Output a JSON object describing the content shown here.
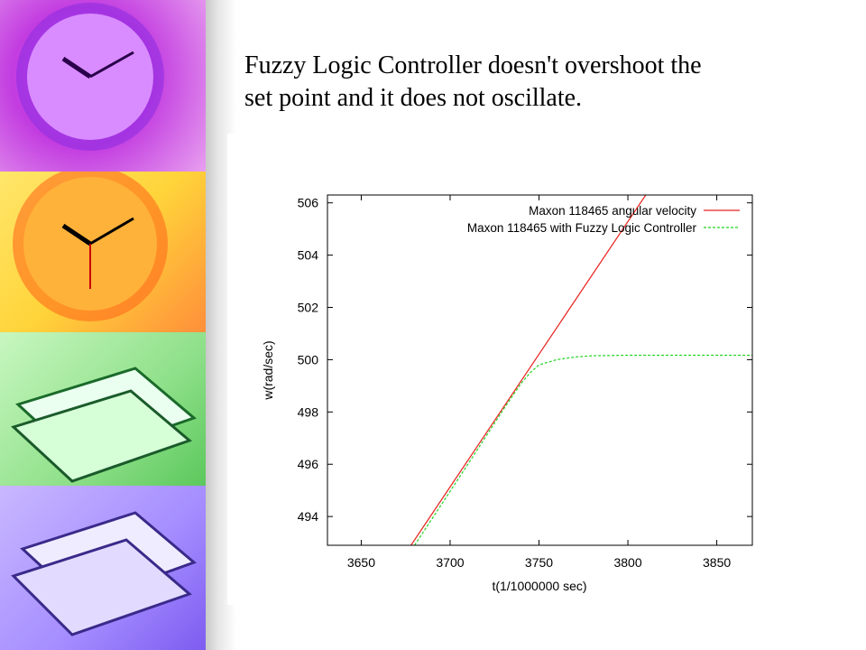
{
  "slide": {
    "title_line_1": "Fuzzy Logic Controller doesn't overshoot the",
    "title_line_2": "set point and it does not oscillate."
  },
  "colors": {
    "series_angular": "#e8231e",
    "series_fuzzy": "#22d422"
  },
  "chart_data": {
    "type": "line",
    "title": "",
    "xlabel": "t(1/1000000 sec)",
    "ylabel": "w(rad/sec)",
    "xlim": [
      3631,
      3870
    ],
    "ylim": [
      492.9,
      506.3
    ],
    "xticks": [
      3650,
      3700,
      3750,
      3800,
      3850
    ],
    "yticks": [
      494,
      496,
      498,
      500,
      502,
      504,
      506
    ],
    "grid": false,
    "legend": "top-right",
    "series": [
      {
        "name": "Maxon 118465 angular velocity",
        "style": "solid",
        "points": [
          [
            3678,
            492.9
          ],
          [
            3810,
            506.3
          ]
        ]
      },
      {
        "name": "Maxon 118465 with Fuzzy Logic Controller",
        "style": "dashed",
        "points": [
          [
            3680,
            492.9
          ],
          [
            3710,
            496.0
          ],
          [
            3730,
            498.1
          ],
          [
            3740,
            499.1
          ],
          [
            3745,
            499.5
          ],
          [
            3750,
            499.8
          ],
          [
            3760,
            500.0
          ],
          [
            3770,
            500.1
          ],
          [
            3780,
            500.15
          ],
          [
            3800,
            500.17
          ],
          [
            3870,
            500.17
          ]
        ]
      }
    ]
  }
}
